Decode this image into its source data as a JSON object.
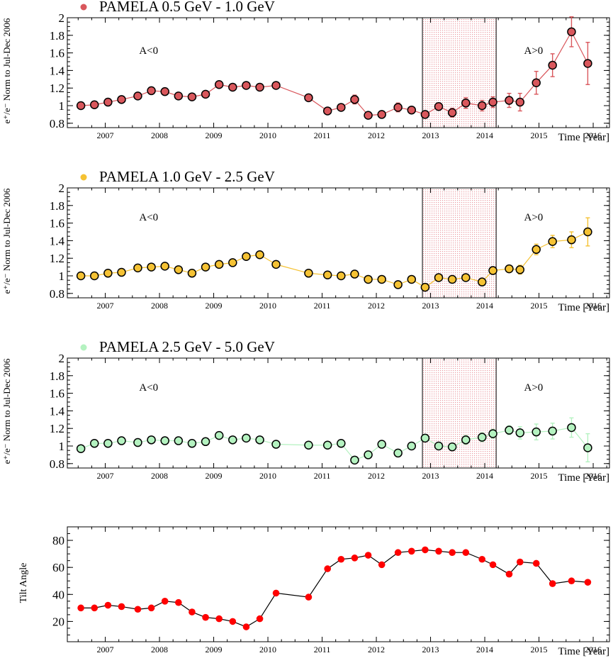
{
  "chart_data": [
    {
      "type": "scatter",
      "title": "PAMELA 0.5 GeV - 1.0 GeV",
      "ylabel": "e⁺/e⁻ Norm to Jul-Dec 2006",
      "xlabel": "Time [Year]",
      "xlim": [
        2006.3,
        2016.3
      ],
      "ylim": [
        0.75,
        2.0
      ],
      "xticks": [
        "2007",
        "2008",
        "2009",
        "2010",
        "2011",
        "2012",
        "2013",
        "2014",
        "2015",
        "2016"
      ],
      "yticks": [
        "0.8",
        "1",
        "1.2",
        "1.4",
        "1.6",
        "1.8",
        "2"
      ],
      "color": "#d9575c",
      "regions": [
        {
          "label": "A<0",
          "x": 2007.8
        },
        {
          "label": "A>0",
          "x": 2014.9
        }
      ],
      "band": [
        2012.85,
        2014.21
      ],
      "series": [
        {
          "name": "PAMELA 0.5 GeV - 1.0 GeV",
          "points": [
            [
              2006.55,
              1.0,
              0.02
            ],
            [
              2006.8,
              1.01,
              0.02
            ],
            [
              2007.05,
              1.04,
              0.02
            ],
            [
              2007.3,
              1.07,
              0.02
            ],
            [
              2007.6,
              1.11,
              0.02
            ],
            [
              2007.85,
              1.17,
              0.02
            ],
            [
              2008.1,
              1.16,
              0.02
            ],
            [
              2008.35,
              1.11,
              0.02
            ],
            [
              2008.6,
              1.1,
              0.02
            ],
            [
              2008.85,
              1.13,
              0.02
            ],
            [
              2009.1,
              1.24,
              0.02
            ],
            [
              2009.35,
              1.21,
              0.02
            ],
            [
              2009.6,
              1.23,
              0.02
            ],
            [
              2009.85,
              1.21,
              0.04
            ],
            [
              2010.15,
              1.23,
              0.02
            ],
            [
              2010.75,
              1.09,
              0.03
            ],
            [
              2011.1,
              0.94,
              0.03
            ],
            [
              2011.35,
              0.98,
              0.03
            ],
            [
              2011.6,
              1.07,
              0.05
            ],
            [
              2011.85,
              0.89,
              0.03
            ],
            [
              2012.1,
              0.9,
              0.03
            ],
            [
              2012.4,
              0.98,
              0.05
            ],
            [
              2012.65,
              0.95,
              0.04
            ],
            [
              2012.9,
              0.9,
              0.04
            ],
            [
              2013.15,
              0.99,
              0.04
            ],
            [
              2013.4,
              0.92,
              0.05
            ],
            [
              2013.65,
              1.03,
              0.06
            ],
            [
              2013.95,
              1.0,
              0.06
            ],
            [
              2014.15,
              1.04,
              0.06
            ],
            [
              2014.45,
              1.06,
              0.08
            ],
            [
              2014.65,
              1.04,
              0.1
            ],
            [
              2014.95,
              1.26,
              0.13
            ],
            [
              2015.25,
              1.46,
              0.13
            ],
            [
              2015.6,
              1.84,
              0.17
            ],
            [
              2015.9,
              1.48,
              0.24
            ]
          ]
        }
      ]
    },
    {
      "type": "scatter",
      "title": "PAMELA 1.0 GeV - 2.5 GeV",
      "ylabel": "e⁺/e⁻ Norm to Jul-Dec 2006",
      "xlabel": "Time [Year]",
      "xlim": [
        2006.3,
        2016.3
      ],
      "ylim": [
        0.75,
        2.0
      ],
      "xticks": [
        "2007",
        "2008",
        "2009",
        "2010",
        "2011",
        "2012",
        "2013",
        "2014",
        "2015",
        "2016"
      ],
      "yticks": [
        "0.8",
        "1",
        "1.2",
        "1.4",
        "1.6",
        "1.8",
        "2"
      ],
      "color": "#f5c233",
      "regions": [
        {
          "label": "A<0",
          "x": 2007.8
        },
        {
          "label": "A>0",
          "x": 2014.9
        }
      ],
      "band": [
        2012.85,
        2014.21
      ],
      "series": [
        {
          "name": "PAMELA 1.0 GeV - 2.5 GeV",
          "points": [
            [
              2006.55,
              1.0,
              0.01
            ],
            [
              2006.8,
              1.0,
              0.01
            ],
            [
              2007.05,
              1.03,
              0.01
            ],
            [
              2007.3,
              1.04,
              0.01
            ],
            [
              2007.6,
              1.09,
              0.01
            ],
            [
              2007.85,
              1.1,
              0.01
            ],
            [
              2008.1,
              1.11,
              0.01
            ],
            [
              2008.35,
              1.07,
              0.01
            ],
            [
              2008.6,
              1.03,
              0.01
            ],
            [
              2008.85,
              1.1,
              0.01
            ],
            [
              2009.1,
              1.13,
              0.01
            ],
            [
              2009.35,
              1.15,
              0.01
            ],
            [
              2009.6,
              1.22,
              0.01
            ],
            [
              2009.85,
              1.24,
              0.01
            ],
            [
              2010.15,
              1.13,
              0.01
            ],
            [
              2010.75,
              1.03,
              0.01
            ],
            [
              2011.1,
              1.01,
              0.01
            ],
            [
              2011.35,
              1.0,
              0.01
            ],
            [
              2011.6,
              1.02,
              0.01
            ],
            [
              2011.85,
              0.96,
              0.01
            ],
            [
              2012.1,
              0.96,
              0.01
            ],
            [
              2012.4,
              0.9,
              0.01
            ],
            [
              2012.65,
              0.96,
              0.01
            ],
            [
              2012.9,
              0.87,
              0.01
            ],
            [
              2013.15,
              0.98,
              0.02
            ],
            [
              2013.4,
              0.96,
              0.02
            ],
            [
              2013.65,
              0.98,
              0.02
            ],
            [
              2013.95,
              0.93,
              0.02
            ],
            [
              2014.15,
              1.06,
              0.03
            ],
            [
              2014.45,
              1.08,
              0.04
            ],
            [
              2014.65,
              1.07,
              0.05
            ],
            [
              2014.95,
              1.3,
              0.06
            ],
            [
              2015.25,
              1.39,
              0.07
            ],
            [
              2015.6,
              1.41,
              0.09
            ],
            [
              2015.9,
              1.5,
              0.16
            ]
          ]
        }
      ]
    },
    {
      "type": "scatter",
      "title": "PAMELA 2.5 GeV - 5.0 GeV",
      "ylabel": "e⁺/e⁻ Norm to Jul-Dec 2006",
      "xlabel": "Time [Year]",
      "xlim": [
        2006.3,
        2016.3
      ],
      "ylim": [
        0.75,
        2.0
      ],
      "xticks": [
        "2007",
        "2008",
        "2009",
        "2010",
        "2011",
        "2012",
        "2013",
        "2014",
        "2015",
        "2016"
      ],
      "yticks": [
        "0.8",
        "1",
        "1.2",
        "1.4",
        "1.6",
        "1.8",
        "2"
      ],
      "color": "#b4f2c0",
      "regions": [
        {
          "label": "A<0",
          "x": 2007.8
        },
        {
          "label": "A>0",
          "x": 2014.9
        }
      ],
      "band": [
        2012.85,
        2014.21
      ],
      "series": [
        {
          "name": "PAMELA 2.5 GeV - 5.0 GeV",
          "points": [
            [
              2006.55,
              0.97,
              0.02
            ],
            [
              2006.8,
              1.03,
              0.02
            ],
            [
              2007.05,
              1.03,
              0.02
            ],
            [
              2007.3,
              1.06,
              0.02
            ],
            [
              2007.6,
              1.04,
              0.02
            ],
            [
              2007.85,
              1.07,
              0.02
            ],
            [
              2008.1,
              1.06,
              0.02
            ],
            [
              2008.35,
              1.06,
              0.02
            ],
            [
              2008.6,
              1.03,
              0.02
            ],
            [
              2008.85,
              1.05,
              0.02
            ],
            [
              2009.1,
              1.12,
              0.02
            ],
            [
              2009.35,
              1.07,
              0.02
            ],
            [
              2009.6,
              1.09,
              0.02
            ],
            [
              2009.85,
              1.07,
              0.03
            ],
            [
              2010.15,
              1.02,
              0.02
            ],
            [
              2010.75,
              1.01,
              0.03
            ],
            [
              2011.1,
              1.01,
              0.03
            ],
            [
              2011.35,
              1.03,
              0.03
            ],
            [
              2011.6,
              0.84,
              0.03
            ],
            [
              2011.85,
              0.9,
              0.04
            ],
            [
              2012.1,
              1.02,
              0.04
            ],
            [
              2012.4,
              0.92,
              0.04
            ],
            [
              2012.65,
              1.0,
              0.04
            ],
            [
              2012.9,
              1.09,
              0.04
            ],
            [
              2013.15,
              1.0,
              0.04
            ],
            [
              2013.4,
              0.99,
              0.04
            ],
            [
              2013.65,
              1.07,
              0.05
            ],
            [
              2013.95,
              1.1,
              0.05
            ],
            [
              2014.15,
              1.14,
              0.05
            ],
            [
              2014.45,
              1.18,
              0.05
            ],
            [
              2014.65,
              1.15,
              0.07
            ],
            [
              2014.95,
              1.16,
              0.09
            ],
            [
              2015.25,
              1.17,
              0.09
            ],
            [
              2015.6,
              1.21,
              0.11
            ],
            [
              2015.9,
              0.98,
              0.16
            ]
          ]
        }
      ]
    },
    {
      "type": "line",
      "title": "",
      "ylabel": "Tilt Angle",
      "xlabel": "Time [Year]",
      "xlim": [
        2006.3,
        2016.3
      ],
      "ylim": [
        5,
        90
      ],
      "xticks": [
        "2007",
        "2008",
        "2009",
        "2010",
        "2011",
        "2012",
        "2013",
        "2014",
        "2015",
        "2016"
      ],
      "yticks": [
        "20",
        "40",
        "60",
        "80"
      ],
      "color": "#ff0000",
      "series": [
        {
          "points": [
            [
              2006.55,
              30
            ],
            [
              2006.8,
              30
            ],
            [
              2007.05,
              32
            ],
            [
              2007.3,
              31
            ],
            [
              2007.6,
              29
            ],
            [
              2007.85,
              30
            ],
            [
              2008.1,
              35
            ],
            [
              2008.35,
              34
            ],
            [
              2008.6,
              27
            ],
            [
              2008.85,
              23
            ],
            [
              2009.1,
              22
            ],
            [
              2009.35,
              20
            ],
            [
              2009.6,
              16
            ],
            [
              2009.85,
              22
            ],
            [
              2010.15,
              41
            ],
            [
              2010.75,
              38
            ],
            [
              2011.1,
              59
            ],
            [
              2011.35,
              66
            ],
            [
              2011.6,
              67
            ],
            [
              2011.85,
              69
            ],
            [
              2012.1,
              62
            ],
            [
              2012.4,
              71
            ],
            [
              2012.65,
              72
            ],
            [
              2012.9,
              73
            ],
            [
              2013.15,
              72
            ],
            [
              2013.4,
              71
            ],
            [
              2013.65,
              71
            ],
            [
              2013.95,
              66
            ],
            [
              2014.15,
              62
            ],
            [
              2014.45,
              55
            ],
            [
              2014.65,
              64
            ],
            [
              2014.95,
              63
            ],
            [
              2015.25,
              48
            ],
            [
              2015.6,
              50
            ],
            [
              2015.9,
              49
            ]
          ]
        }
      ]
    }
  ]
}
